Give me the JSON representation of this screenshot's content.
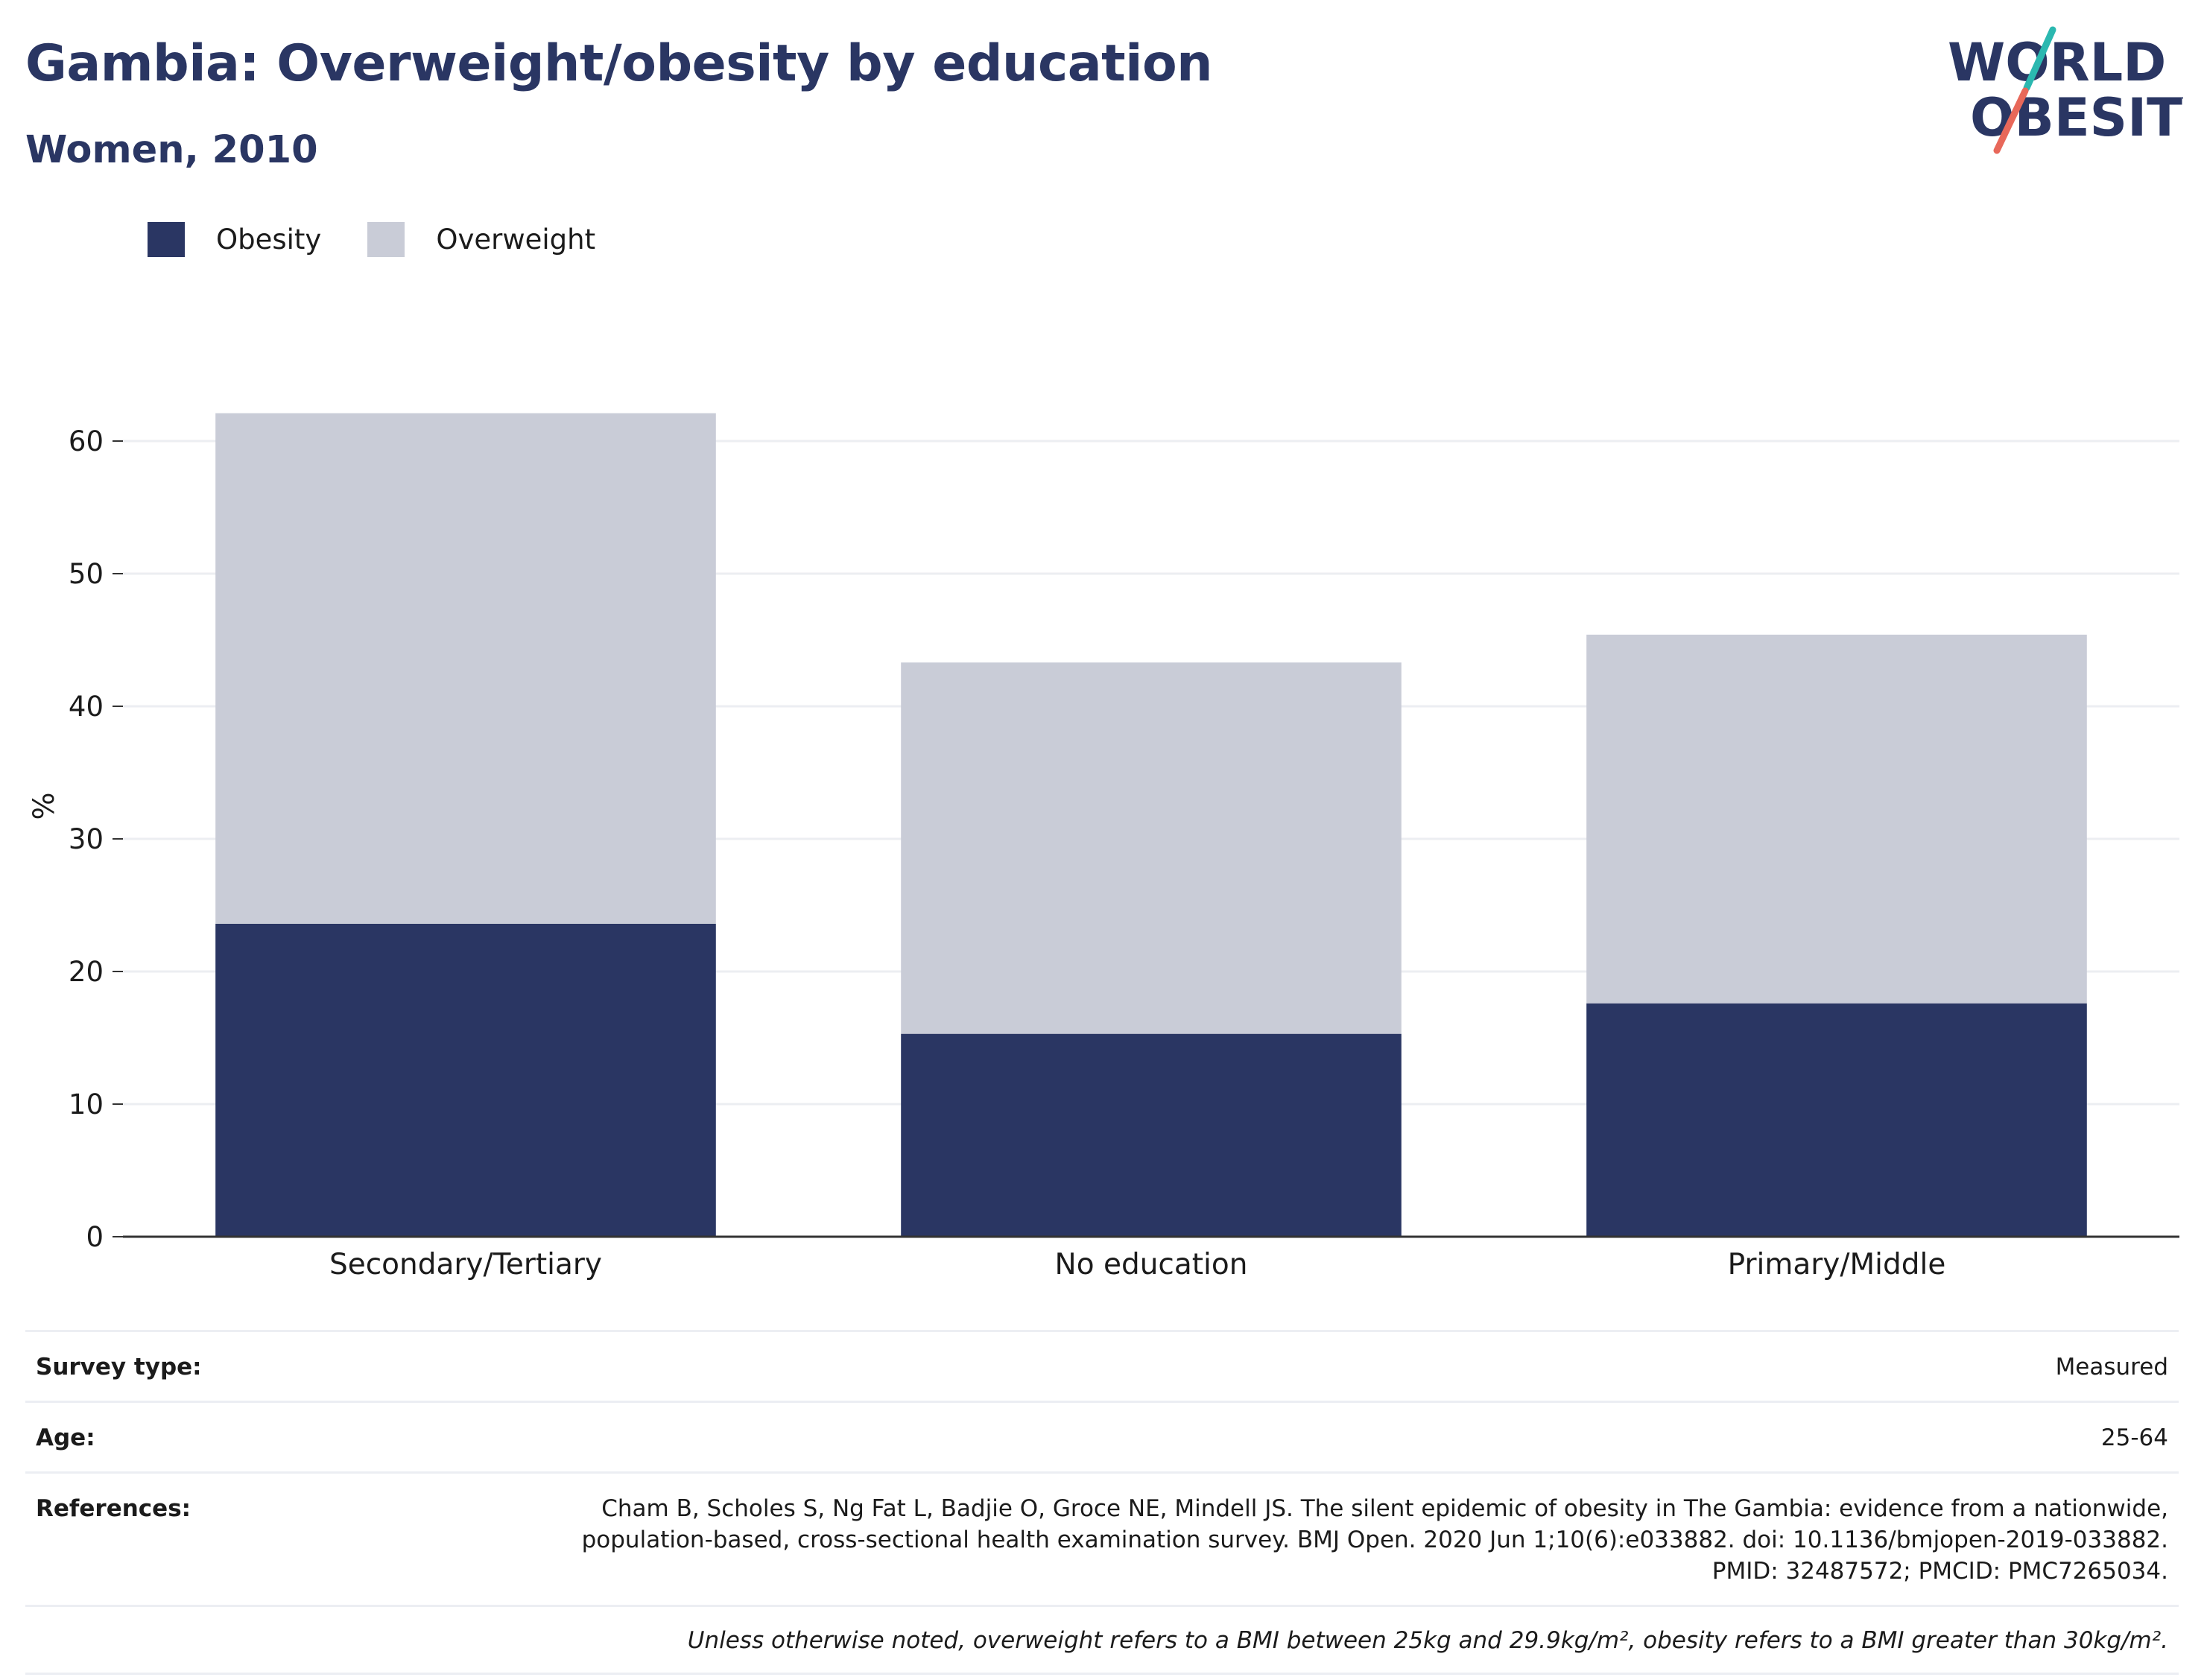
{
  "header": {
    "title": "Gambia: Overweight/obesity by education",
    "subtitle": "Women, 2010",
    "logo_line1": "WORLD",
    "logo_line2": "OBESITY"
  },
  "legend": {
    "items": [
      {
        "label": "Obesity",
        "color": "#2a3663"
      },
      {
        "label": "Overweight",
        "color": "#c9ccd7"
      }
    ]
  },
  "chart_data": {
    "type": "bar",
    "stacked": true,
    "categories": [
      "Secondary/Tertiary",
      "No education",
      "Primary/Middle"
    ],
    "series": [
      {
        "name": "Obesity",
        "color": "#2a3663",
        "values": [
          23.6,
          15.3,
          17.6
        ]
      },
      {
        "name": "Overweight",
        "color": "#c9ccd7",
        "values": [
          38.5,
          28.0,
          27.8
        ]
      }
    ],
    "ylabel": "%",
    "xlabel": "",
    "ylim": [
      0,
      65
    ],
    "yticks": [
      0,
      10,
      20,
      30,
      40,
      50,
      60
    ],
    "grid": true,
    "legend_position": "top-left"
  },
  "meta": {
    "survey_type_label": "Survey type:",
    "survey_type_value": "Measured",
    "age_label": "Age:",
    "age_value": "25-64",
    "references_label": "References:",
    "references_value": "Cham B, Scholes S, Ng Fat L, Badjie O, Groce NE, Mindell JS. The silent epidemic of obesity in The Gambia: evidence from a nationwide, population-based, cross-sectional health examination survey. BMJ Open. 2020 Jun 1;10(6):e033882. doi: 10.1136/bmjopen-2019-033882. PMID: 32487572; PMCID: PMC7265034.",
    "footnote": "Unless otherwise noted, overweight refers to a BMI between 25kg and 29.9kg/m², obesity refers to a BMI greater than 30kg/m²."
  }
}
